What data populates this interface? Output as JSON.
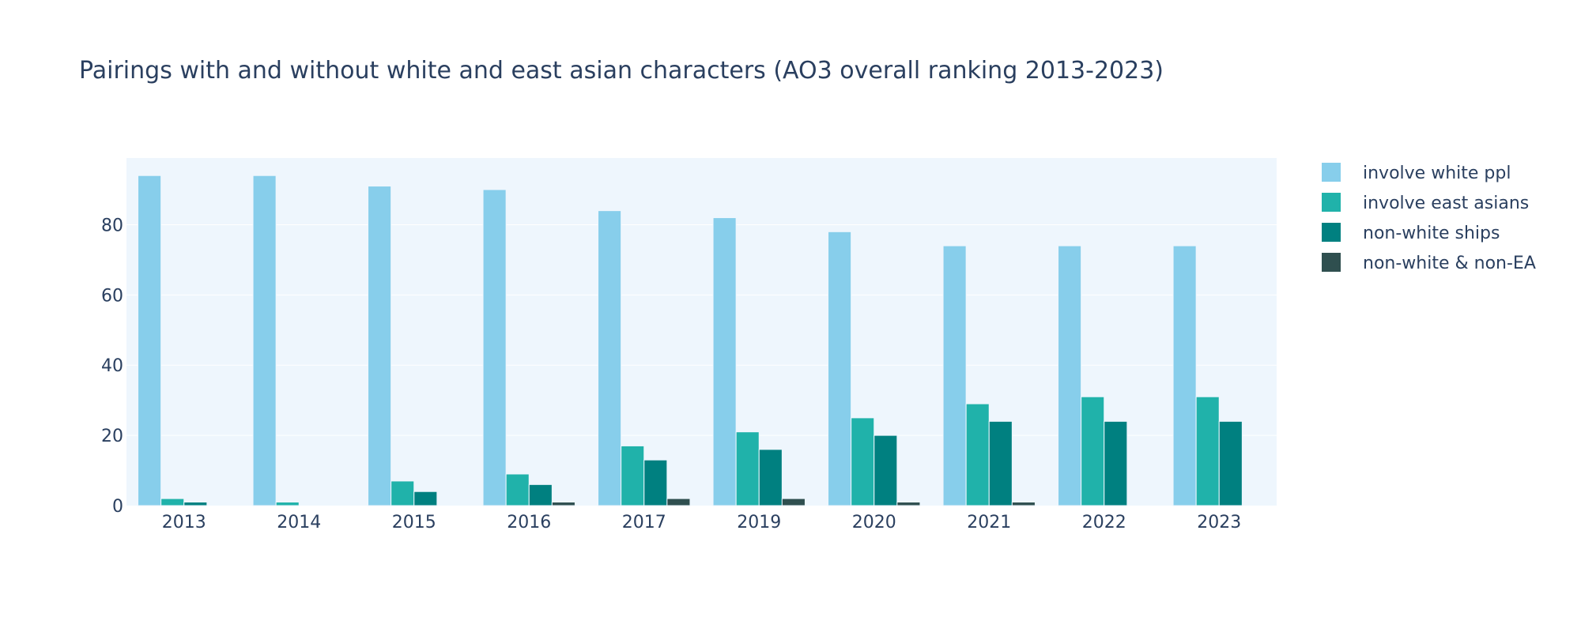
{
  "chart_data": {
    "type": "bar",
    "title": "Pairings with and without white and east asian characters (AO3 overall ranking 2013-2023)",
    "xlabel": "",
    "ylabel": "",
    "categories": [
      "2013",
      "2014",
      "2015",
      "2016",
      "2017",
      "2019",
      "2020",
      "2021",
      "2022",
      "2023"
    ],
    "ylim": [
      0,
      99
    ],
    "yticks": [
      0,
      20,
      40,
      60,
      80
    ],
    "grid": true,
    "legend_position": "right",
    "series": [
      {
        "name": "involve white ppl",
        "color": "#87ceeb",
        "values": [
          94,
          94,
          91,
          90,
          84,
          82,
          78,
          74,
          74,
          74
        ]
      },
      {
        "name": "involve east asians",
        "color": "#20b2aa",
        "values": [
          2,
          1,
          7,
          9,
          17,
          21,
          25,
          29,
          31,
          31
        ]
      },
      {
        "name": "non-white ships",
        "color": "#008080",
        "values": [
          1,
          0,
          4,
          6,
          13,
          16,
          20,
          24,
          24,
          24
        ]
      },
      {
        "name": "non-white & non-EA",
        "color": "#2f4f4f",
        "values": [
          0,
          0,
          0,
          1,
          2,
          2,
          1,
          1,
          0,
          0
        ]
      }
    ]
  }
}
